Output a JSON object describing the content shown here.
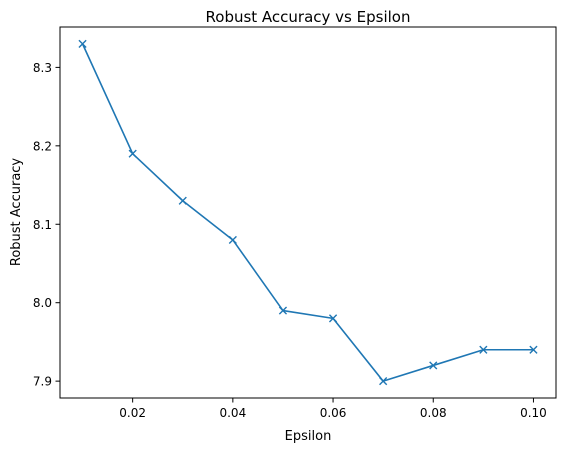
{
  "chart_data": {
    "type": "line",
    "title": "Robust Accuracy vs Epsilon",
    "xlabel": "Epsilon",
    "ylabel": "Robust Accuracy",
    "x": [
      0.01,
      0.02,
      0.03,
      0.04,
      0.05,
      0.06,
      0.07,
      0.08,
      0.09,
      0.1
    ],
    "series": [
      {
        "values": [
          8.33,
          8.19,
          8.13,
          8.08,
          7.99,
          7.98,
          7.9,
          7.92,
          7.94,
          7.94
        ],
        "color": "#1f77b4",
        "marker": "x"
      }
    ],
    "xlim": [
      0.0055,
      0.1045
    ],
    "ylim": [
      7.8785,
      8.3515
    ],
    "xticks": [
      0.02,
      0.04,
      0.06,
      0.08,
      0.1
    ],
    "xtick_labels": [
      "0.02",
      "0.04",
      "0.06",
      "0.08",
      "0.10"
    ],
    "yticks": [
      7.9,
      8.0,
      8.1,
      8.2,
      8.3
    ],
    "ytick_labels": [
      "7.9",
      "8.0",
      "8.1",
      "8.2",
      "8.3"
    ],
    "grid": false,
    "legend": false
  }
}
